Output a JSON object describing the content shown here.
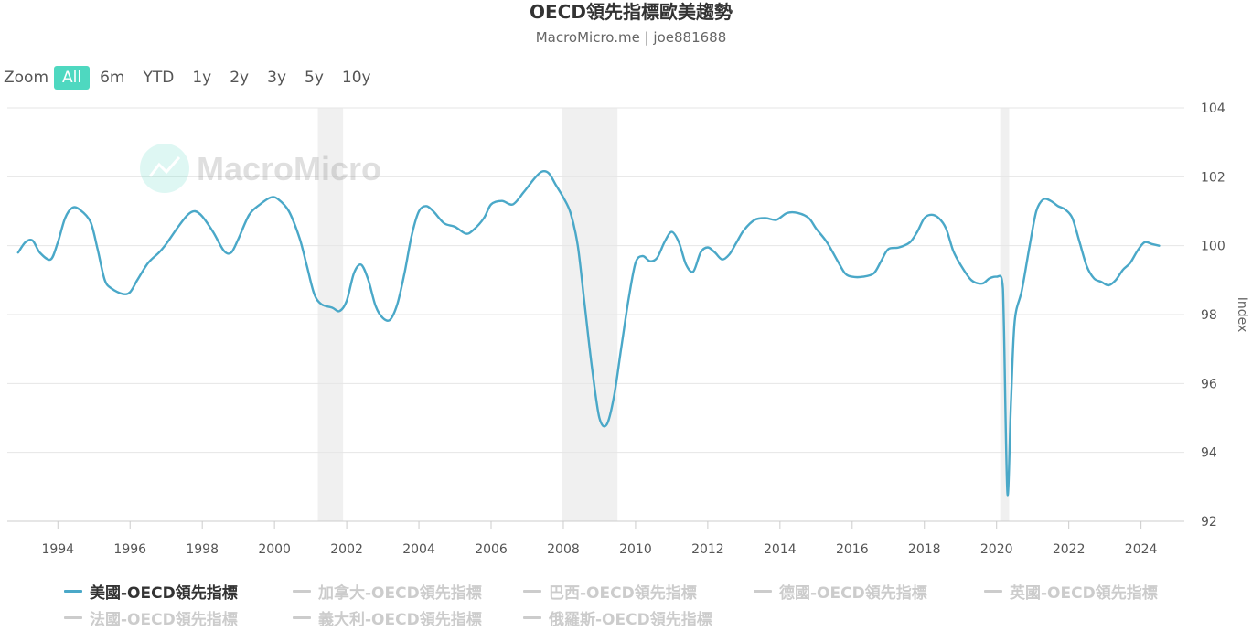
{
  "header": {
    "title": "OECD領先指標歐美趨勢",
    "subtitle": "MacroMicro.me | joe881688"
  },
  "zoom": {
    "label": "Zoom",
    "buttons": [
      "All",
      "6m",
      "YTD",
      "1y",
      "2y",
      "3y",
      "5y",
      "10y"
    ],
    "active": "All"
  },
  "watermark": "MacroMicro",
  "legend_items": [
    "美國-OECD領先指標",
    "加拿大-OECD領先指標",
    "巴西-OECD領先指標",
    "德國-OECD領先指標",
    "英國-OECD領先指標",
    "法國-OECD領先指標",
    "義大利-OECD領先指標",
    "俄羅斯-OECD領先指標"
  ],
  "chart_data": {
    "type": "line",
    "title": "OECD領先指標歐美趨勢",
    "ylabel": "Index",
    "xlim": [
      1992.6,
      2025.2
    ],
    "ylim": [
      92,
      104
    ],
    "x_ticks": [
      1994,
      1996,
      1998,
      2000,
      2002,
      2004,
      2006,
      2008,
      2010,
      2012,
      2014,
      2016,
      2018,
      2020,
      2022,
      2024
    ],
    "y_ticks": [
      92,
      94,
      96,
      98,
      100,
      102,
      104
    ],
    "grid": true,
    "legend_position": "bottom",
    "colors": {
      "line": "#4aa8c8",
      "recession": "#f0f0f0",
      "grid": "#e6e6e6"
    },
    "recessions": [
      [
        2001.2,
        2001.9
      ],
      [
        2007.95,
        2009.5
      ],
      [
        2020.1,
        2020.35
      ]
    ],
    "series": [
      {
        "name": "美國-OECD領先指標",
        "visible": true,
        "x": [
          1992.9,
          1993.1,
          1993.3,
          1993.5,
          1993.8,
          1994.0,
          1994.2,
          1994.4,
          1994.6,
          1994.9,
          1995.1,
          1995.3,
          1995.5,
          1995.8,
          1996.0,
          1996.2,
          1996.5,
          1996.8,
          1997.0,
          1997.3,
          1997.6,
          1997.8,
          1998.0,
          1998.3,
          1998.6,
          1998.8,
          1999.0,
          1999.3,
          1999.6,
          1999.9,
          2000.1,
          2000.4,
          2000.7,
          2000.9,
          2001.1,
          2001.3,
          2001.6,
          2001.8,
          2002.0,
          2002.2,
          2002.4,
          2002.6,
          2002.8,
          2003.0,
          2003.2,
          2003.4,
          2003.6,
          2003.8,
          2004.0,
          2004.2,
          2004.4,
          2004.7,
          2005.0,
          2005.3,
          2005.5,
          2005.8,
          2006.0,
          2006.3,
          2006.6,
          2006.9,
          2007.2,
          2007.4,
          2007.6,
          2007.8,
          2008.0,
          2008.2,
          2008.4,
          2008.6,
          2008.8,
          2009.0,
          2009.2,
          2009.4,
          2009.6,
          2009.8,
          2010.0,
          2010.2,
          2010.4,
          2010.6,
          2010.8,
          2011.0,
          2011.2,
          2011.4,
          2011.6,
          2011.8,
          2012.0,
          2012.2,
          2012.4,
          2012.6,
          2012.8,
          2013.0,
          2013.3,
          2013.6,
          2013.9,
          2014.2,
          2014.5,
          2014.8,
          2015.0,
          2015.3,
          2015.6,
          2015.8,
          2016.0,
          2016.3,
          2016.6,
          2016.8,
          2017.0,
          2017.3,
          2017.6,
          2017.8,
          2018.0,
          2018.2,
          2018.4,
          2018.6,
          2018.8,
          2019.0,
          2019.3,
          2019.6,
          2019.8,
          2020.0,
          2020.15,
          2020.2,
          2020.3,
          2020.4,
          2020.5,
          2020.7,
          2020.9,
          2021.1,
          2021.3,
          2021.5,
          2021.7,
          2021.9,
          2022.1,
          2022.3,
          2022.5,
          2022.7,
          2022.9,
          2023.1,
          2023.3,
          2023.5,
          2023.7,
          2023.9,
          2024.1,
          2024.3,
          2024.5
        ],
        "values": [
          99.8,
          100.1,
          100.15,
          99.8,
          99.6,
          100.1,
          100.8,
          101.1,
          101.05,
          100.7,
          99.9,
          99.0,
          98.75,
          98.6,
          98.65,
          99.0,
          99.5,
          99.8,
          100.05,
          100.5,
          100.9,
          101.0,
          100.85,
          100.4,
          99.85,
          99.8,
          100.2,
          100.9,
          101.2,
          101.4,
          101.35,
          101.0,
          100.2,
          99.4,
          98.6,
          98.3,
          98.2,
          98.1,
          98.4,
          99.2,
          99.45,
          99.0,
          98.25,
          97.9,
          97.85,
          98.3,
          99.2,
          100.3,
          101.0,
          101.15,
          101.0,
          100.65,
          100.55,
          100.35,
          100.45,
          100.8,
          101.2,
          101.3,
          101.2,
          101.55,
          101.95,
          102.15,
          102.1,
          101.75,
          101.4,
          100.95,
          100.0,
          98.2,
          96.4,
          95.0,
          94.8,
          95.6,
          97.0,
          98.4,
          99.5,
          99.7,
          99.55,
          99.65,
          100.1,
          100.4,
          100.1,
          99.45,
          99.25,
          99.8,
          99.95,
          99.8,
          99.6,
          99.75,
          100.1,
          100.45,
          100.75,
          100.8,
          100.75,
          100.95,
          100.95,
          100.8,
          100.5,
          100.1,
          99.55,
          99.2,
          99.1,
          99.1,
          99.2,
          99.55,
          99.9,
          99.95,
          100.1,
          100.4,
          100.8,
          100.9,
          100.8,
          100.5,
          99.85,
          99.45,
          99.0,
          98.9,
          99.05,
          99.1,
          99.0,
          97.8,
          92.8,
          95.5,
          97.8,
          98.7,
          99.9,
          101.0,
          101.35,
          101.3,
          101.15,
          101.05,
          100.8,
          100.1,
          99.4,
          99.05,
          98.95,
          98.85,
          99.0,
          99.3,
          99.5,
          99.85,
          100.1,
          100.05,
          100.0
        ]
      },
      {
        "name": "加拿大-OECD領先指標",
        "visible": false
      },
      {
        "name": "巴西-OECD領先指標",
        "visible": false
      },
      {
        "name": "德國-OECD領先指標",
        "visible": false
      },
      {
        "name": "英國-OECD領先指標",
        "visible": false
      },
      {
        "name": "法國-OECD領先指標",
        "visible": false
      },
      {
        "name": "義大利-OECD領先指標",
        "visible": false
      },
      {
        "name": "俄羅斯-OECD領先指標",
        "visible": false
      }
    ]
  }
}
